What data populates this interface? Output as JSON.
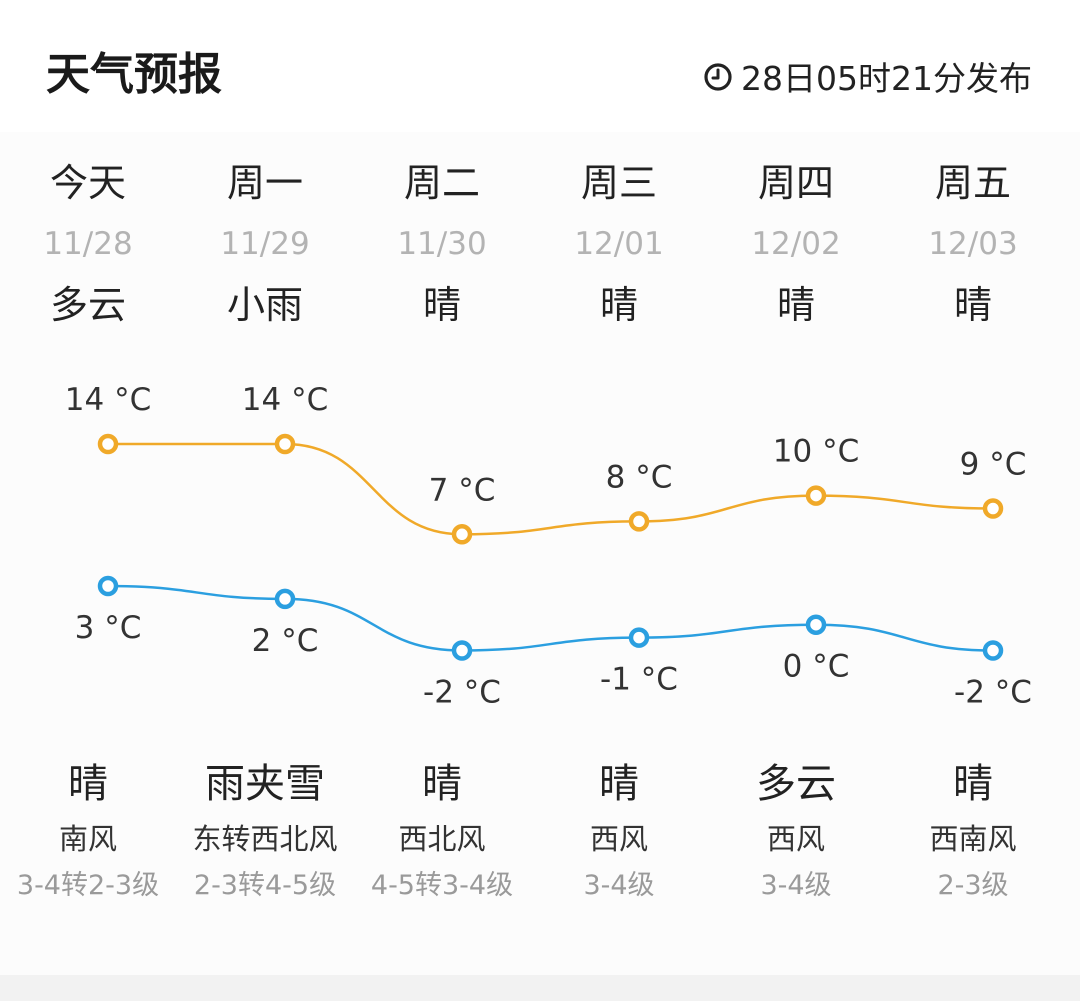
{
  "header": {
    "title": "天气预报",
    "publish_time": "28日05时21分发布",
    "clock_icon": "clock-icon"
  },
  "days": [
    {
      "name": "今天",
      "date": "11/28",
      "weather_day": "多云",
      "weather_night": "晴",
      "wind_dir": "南风",
      "wind_level": "3-4转2-3级",
      "high": 14,
      "low": 3,
      "high_label": "14 °C",
      "low_label": "3 °C"
    },
    {
      "name": "周一",
      "date": "11/29",
      "weather_day": "小雨",
      "weather_night": "雨夹雪",
      "wind_dir": "东转西北风",
      "wind_level": "2-3转4-5级",
      "high": 14,
      "low": 2,
      "high_label": "14 °C",
      "low_label": "2 °C"
    },
    {
      "name": "周二",
      "date": "11/30",
      "weather_day": "晴",
      "weather_night": "晴",
      "wind_dir": "西北风",
      "wind_level": "4-5转3-4级",
      "high": 7,
      "low": -2,
      "high_label": "7 °C",
      "low_label": "-2 °C"
    },
    {
      "name": "周三",
      "date": "12/01",
      "weather_day": "晴",
      "weather_night": "晴",
      "wind_dir": "西风",
      "wind_level": "3-4级",
      "high": 8,
      "low": -1,
      "high_label": "8 °C",
      "low_label": "-1 °C"
    },
    {
      "name": "周四",
      "date": "12/02",
      "weather_day": "晴",
      "weather_night": "多云",
      "wind_dir": "西风",
      "wind_level": "3-4级",
      "high": 10,
      "low": 0,
      "high_label": "10 °C",
      "low_label": "0 °C"
    },
    {
      "name": "周五",
      "date": "12/03",
      "weather_day": "晴",
      "weather_night": "晴",
      "wind_dir": "西南风",
      "wind_level": "2-3级",
      "high": 9,
      "low": -2,
      "high_label": "9 °C",
      "low_label": "-2 °C"
    }
  ],
  "colors": {
    "high_line": "#f0a929",
    "low_line": "#2b9fe0",
    "date_text": "#b3b3b3",
    "wind_level_text": "#9a9a9a"
  }
}
